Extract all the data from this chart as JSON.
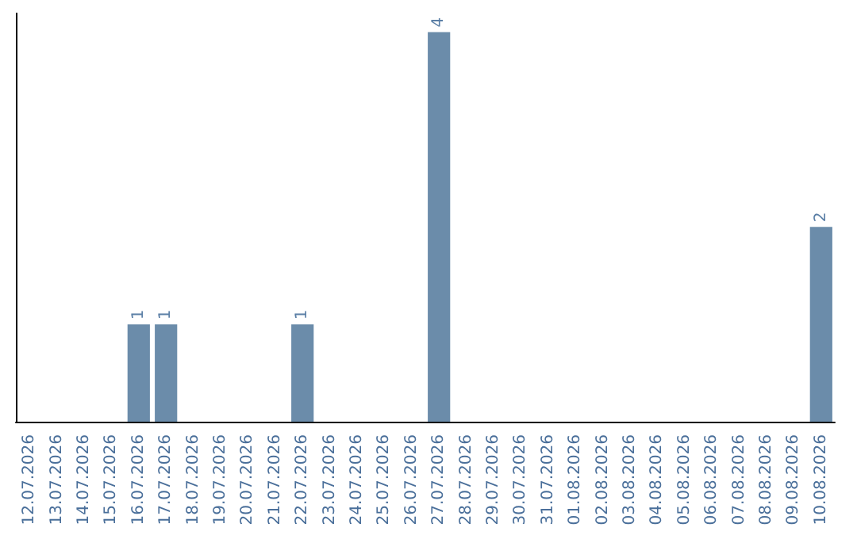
{
  "chart_data": {
    "type": "bar",
    "categories": [
      "12.07.2026",
      "13.07.2026",
      "14.07.2026",
      "15.07.2026",
      "16.07.2026",
      "17.07.2026",
      "18.07.2026",
      "19.07.2026",
      "20.07.2026",
      "21.07.2026",
      "22.07.2026",
      "23.07.2026",
      "24.07.2026",
      "25.07.2026",
      "26.07.2026",
      "27.07.2026",
      "28.07.2026",
      "29.07.2026",
      "30.07.2026",
      "31.07.2026",
      "01.08.2026",
      "02.08.2026",
      "03.08.2026",
      "04.08.2026",
      "05.08.2026",
      "06.08.2026",
      "07.08.2026",
      "08.08.2026",
      "09.08.2026",
      "10.08.2026"
    ],
    "values": [
      0,
      0,
      0,
      0,
      1,
      1,
      0,
      0,
      0,
      0,
      1,
      0,
      0,
      0,
      0,
      4,
      0,
      0,
      0,
      0,
      0,
      0,
      0,
      0,
      0,
      0,
      0,
      0,
      0,
      2
    ],
    "value_labels": [
      null,
      null,
      null,
      null,
      "1",
      "1",
      null,
      null,
      null,
      null,
      "1",
      null,
      null,
      null,
      null,
      "4",
      null,
      null,
      null,
      null,
      null,
      null,
      null,
      null,
      null,
      null,
      null,
      null,
      null,
      "2"
    ],
    "color": "#6b8caa"
  }
}
